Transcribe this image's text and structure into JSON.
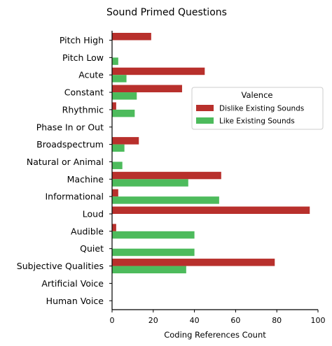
{
  "chart_data": {
    "type": "bar",
    "orientation": "horizontal",
    "title": "Sound Primed Questions",
    "xlabel": "Coding References Count",
    "ylabel": "",
    "xlim": [
      0,
      100
    ],
    "xticks": [
      0,
      20,
      40,
      60,
      80,
      100
    ],
    "grid": false,
    "legend": {
      "title": "Valence",
      "placement": "right"
    },
    "categories": [
      "Pitch High",
      "Pitch Low",
      "Acute",
      "Constant",
      "Rhythmic",
      "Phase In or Out",
      "Broadspectrum",
      "Natural or Animal",
      "Machine",
      "Informational",
      "Loud",
      "Audible",
      "Quiet",
      "Subjective Qualities",
      "Artificial Voice",
      "Human Voice"
    ],
    "series": [
      {
        "name": "Dislike Existing Sounds",
        "color": "#b8302c",
        "values": [
          19,
          0,
          45,
          34,
          2,
          0,
          13,
          0,
          53,
          3,
          96,
          2,
          0,
          79,
          0,
          0
        ]
      },
      {
        "name": "Like Existing Sounds",
        "color": "#4dbb5c",
        "values": [
          0,
          3,
          7,
          12,
          11,
          0,
          6,
          5,
          37,
          52,
          0,
          40,
          40,
          36,
          0,
          0
        ]
      }
    ]
  }
}
